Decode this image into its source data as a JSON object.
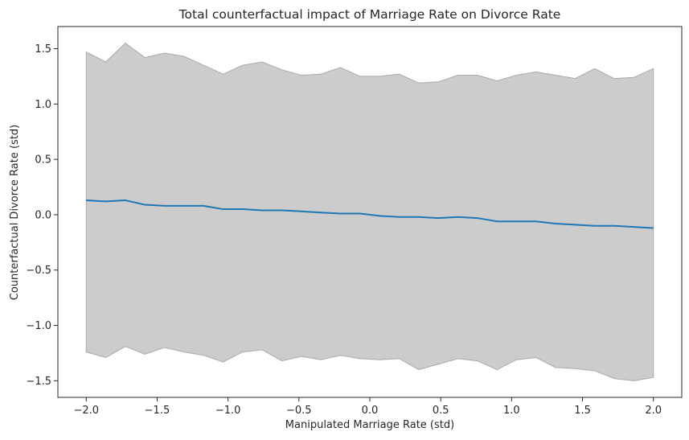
{
  "chart_data": {
    "type": "line",
    "title": "Total counterfactual impact of Marriage Rate on Divorce Rate",
    "xlabel": "Manipulated Marriage Rate (std)",
    "ylabel": "Counterfactual Divorce Rate (std)",
    "xlim": [
      -2.2,
      2.2
    ],
    "ylim": [
      -1.65,
      1.7
    ],
    "xticks": [
      -2.0,
      -1.5,
      -1.0,
      -0.5,
      0.0,
      0.5,
      1.0,
      1.5,
      2.0
    ],
    "xtick_labels": [
      "−2.0",
      "−1.5",
      "−1.0",
      "−0.5",
      "0.0",
      "0.5",
      "1.0",
      "1.5",
      "2.0"
    ],
    "yticks": [
      1.5,
      1.0,
      0.5,
      0.0,
      -0.5,
      -1.0,
      -1.5
    ],
    "ytick_labels": [
      "1.5",
      "1.0",
      "0.5",
      "0.0",
      "−0.5",
      "−1.0",
      "−1.5"
    ],
    "grid": false,
    "x": [
      -2.0,
      -1.862,
      -1.724,
      -1.586,
      -1.448,
      -1.31,
      -1.172,
      -1.034,
      -0.897,
      -0.759,
      -0.621,
      -0.483,
      -0.345,
      -0.207,
      -0.069,
      0.069,
      0.207,
      0.345,
      0.483,
      0.621,
      0.759,
      0.897,
      1.034,
      1.172,
      1.31,
      1.448,
      1.586,
      1.724,
      1.862,
      2.0
    ],
    "series": [
      {
        "values": [
          0.13,
          0.12,
          0.13,
          0.09,
          0.08,
          0.08,
          0.08,
          0.05,
          0.05,
          0.04,
          0.04,
          0.03,
          0.02,
          0.01,
          0.01,
          -0.01,
          -0.02,
          -0.02,
          -0.03,
          -0.02,
          -0.03,
          -0.06,
          -0.06,
          -0.06,
          -0.08,
          -0.09,
          -0.1,
          -0.1,
          -0.11,
          -0.12
        ],
        "color": "#1f77b4"
      }
    ],
    "band": {
      "upper": [
        1.47,
        1.38,
        1.55,
        1.42,
        1.46,
        1.43,
        1.35,
        1.27,
        1.35,
        1.38,
        1.31,
        1.26,
        1.27,
        1.33,
        1.25,
        1.25,
        1.27,
        1.19,
        1.2,
        1.26,
        1.26,
        1.21,
        1.26,
        1.29,
        1.26,
        1.23,
        1.32,
        1.23,
        1.24,
        1.32
      ],
      "lower": [
        -1.24,
        -1.29,
        -1.19,
        -1.26,
        -1.2,
        -1.24,
        -1.27,
        -1.33,
        -1.24,
        -1.22,
        -1.32,
        -1.28,
        -1.31,
        -1.27,
        -1.3,
        -1.31,
        -1.3,
        -1.4,
        -1.35,
        -1.3,
        -1.32,
        -1.4,
        -1.31,
        -1.29,
        -1.38,
        -1.39,
        -1.41,
        -1.48,
        -1.5,
        -1.47
      ],
      "fill": "#cccccc",
      "edge": "#aaaaaa"
    }
  }
}
